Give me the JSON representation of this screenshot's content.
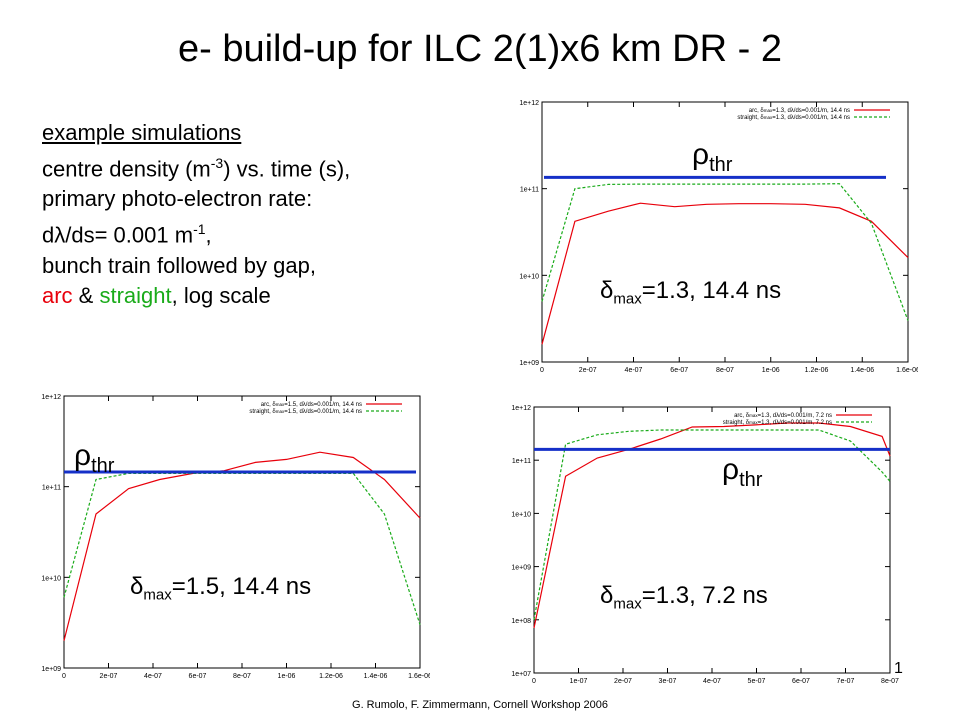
{
  "slide": {
    "title": "e- build-up for ILC 2(1)x6 km DR - 2",
    "desc": {
      "line1": "example simulations",
      "line2_pre": "centre density (m",
      "line2_sup": "-3",
      "line2_post": ") vs. time (s),",
      "line3": "primary photo-electron rate:",
      "line4_pre": "d",
      "line4_lambda": "λ",
      "line4_mid": "/ds= 0.001 m",
      "line4_sup": "-1",
      "line4_post": ",",
      "line5": "bunch train followed by gap,",
      "line6_arc": "arc",
      "line6_amp": " & ",
      "line6_straight": "straight",
      "line6_post": ", log scale"
    },
    "footer": "G. Rumolo, F. Zimmermann, Cornell Workshop 2006",
    "page_number": "1",
    "colors": {
      "arc": "#e8000b",
      "straight": "#1aab1a",
      "threshold": "#1530c8"
    }
  },
  "chart_data": [
    {
      "type": "line",
      "log_y": true,
      "xlim": [
        0,
        1.6e-06
      ],
      "ylim": [
        1000000000.0,
        1000000000000.0
      ],
      "x_ticks": [
        "0",
        "2e-07",
        "4e-07",
        "6e-07",
        "8e-07",
        "1e-06",
        "1.2e-06",
        "1.4e-06",
        "1.6e-06"
      ],
      "y_ticks": [
        "1e+09",
        "1e+10",
        "1e+11",
        "1e+12"
      ],
      "legend_position": "top-right",
      "legend": [
        {
          "prefix": "arc, δ",
          "sub": "max",
          "suffix": "=1.3, dλ/ds=0.001/m, 14.4 ns"
        },
        {
          "prefix": "straight, δ",
          "sub": "max",
          "suffix": "=1.3, dλ/ds=0.001/m, 14.4 ns"
        }
      ],
      "annotation": {
        "symbol": "δ",
        "sub": "max",
        "text": "=1.3, 14.4 ns"
      },
      "threshold_label": {
        "symbol": "ρ",
        "sub": "thr"
      },
      "threshold_value": 135000000000.0,
      "series": [
        {
          "name": "arc",
          "x": [
            0,
            1.44e-07,
            2.9e-07,
            4.3e-07,
            5.8e-07,
            7.2e-07,
            8.6e-07,
            1e-06,
            1.15e-06,
            1.3e-06,
            1.44e-06,
            1.6e-06
          ],
          "y": [
            1600000000.0,
            42000000000.0,
            55000000000.0,
            68000000000.0,
            62000000000.0,
            66000000000.0,
            67000000000.0,
            67000000000.0,
            66000000000.0,
            60000000000.0,
            42000000000.0,
            16000000000.0
          ]
        },
        {
          "name": "straight",
          "x": [
            0,
            1.44e-07,
            2.9e-07,
            4.3e-07,
            5.8e-07,
            7.2e-07,
            8.6e-07,
            1e-06,
            1.15e-06,
            1.3e-06,
            1.44e-06,
            1.6e-06
          ],
          "y": [
            5000000000.0,
            100000000000.0,
            112000000000.0,
            113000000000.0,
            113000000000.0,
            113000000000.0,
            113000000000.0,
            113000000000.0,
            113000000000.0,
            114000000000.0,
            40000000000.0,
            3000000000.0
          ]
        }
      ]
    },
    {
      "type": "line",
      "log_y": true,
      "xlim": [
        0,
        1.6e-06
      ],
      "ylim": [
        1000000000.0,
        1000000000000.0
      ],
      "x_ticks": [
        "0",
        "2e-07",
        "4e-07",
        "6e-07",
        "8e-07",
        "1e-06",
        "1.2e-06",
        "1.4e-06",
        "1.6e-06"
      ],
      "y_ticks": [
        "1e+09",
        "1e+10",
        "1e+11",
        "1e+12"
      ],
      "legend_position": "top-right",
      "legend": [
        {
          "prefix": "arc, δ",
          "sub": "max",
          "suffix": "=1.5, dλ/ds=0.001/m, 14.4 ns"
        },
        {
          "prefix": "straight, δ",
          "sub": "max",
          "suffix": "=1.5, dλ/ds=0.001/m, 14.4 ns"
        }
      ],
      "annotation": {
        "symbol": "δ",
        "sub": "max",
        "text": "=1.5, 14.4 ns"
      },
      "threshold_label": {
        "symbol": "ρ",
        "sub": "thr"
      },
      "threshold_value": 145000000000.0,
      "series": [
        {
          "name": "arc",
          "x": [
            0,
            1.44e-07,
            2.9e-07,
            4.3e-07,
            5.8e-07,
            7.2e-07,
            8.6e-07,
            1e-06,
            1.15e-06,
            1.3e-06,
            1.44e-06,
            1.6e-06
          ],
          "y": [
            2000000000.0,
            50000000000.0,
            95000000000.0,
            120000000000.0,
            140000000000.0,
            150000000000.0,
            185000000000.0,
            200000000000.0,
            240000000000.0,
            210000000000.0,
            120000000000.0,
            45000000000.0
          ]
        },
        {
          "name": "straight",
          "x": [
            0,
            1.44e-07,
            2.9e-07,
            4.3e-07,
            5.8e-07,
            7.2e-07,
            8.6e-07,
            1e-06,
            1.15e-06,
            1.3e-06,
            1.44e-06,
            1.6e-06
          ],
          "y": [
            6000000000.0,
            120000000000.0,
            140000000000.0,
            140000000000.0,
            140000000000.0,
            140000000000.0,
            140000000000.0,
            140000000000.0,
            140000000000.0,
            140000000000.0,
            50000000000.0,
            3000000000.0
          ]
        }
      ]
    },
    {
      "type": "line",
      "log_y": true,
      "xlim": [
        0,
        8.1e-07
      ],
      "ylim": [
        10000000.0,
        1000000000000.0
      ],
      "x_ticks": [
        "0",
        "1e-07",
        "2e-07",
        "3e-07",
        "4e-07",
        "5e-07",
        "6e-07",
        "7e-07",
        "8e-07"
      ],
      "y_ticks": [
        "1e+07",
        "1e+08",
        "1e+09",
        "1e+10",
        "1e+11",
        "1e+12"
      ],
      "legend_position": "top-right",
      "legend": [
        {
          "prefix": "arc, δ",
          "sub": "max",
          "suffix": "=1.3, dλ/ds=0.001/m, 7.2 ns"
        },
        {
          "prefix": "straight, δ",
          "sub": "max",
          "suffix": "=1.3, dλ/ds=0.001/m, 7.2 ns"
        }
      ],
      "annotation": {
        "symbol": "δ",
        "sub": "max",
        "text": "=1.3, 7.2 ns"
      },
      "threshold_label": {
        "symbol": "ρ",
        "sub": "thr"
      },
      "threshold_value": 160000000000.0,
      "series": [
        {
          "name": "arc",
          "x": [
            0,
            7.2e-08,
            1.44e-07,
            2.16e-07,
            2.88e-07,
            3.6e-07,
            4.32e-07,
            5.04e-07,
            5.76e-07,
            6.48e-07,
            7.2e-07,
            7.92e-07,
            8.1e-07
          ],
          "y": [
            70000000.0,
            50000000000.0,
            110000000000.0,
            160000000000.0,
            250000000000.0,
            420000000000.0,
            430000000000.0,
            460000000000.0,
            500000000000.0,
            500000000000.0,
            430000000000.0,
            280000000000.0,
            120000000000.0
          ]
        },
        {
          "name": "straight",
          "x": [
            0,
            7.2e-08,
            1.44e-07,
            2.16e-07,
            2.88e-07,
            3.6e-07,
            4.32e-07,
            5.04e-07,
            5.76e-07,
            6.48e-07,
            7.2e-07,
            7.92e-07,
            8.1e-07
          ],
          "y": [
            100000000.0,
            200000000000.0,
            300000000000.0,
            350000000000.0,
            370000000000.0,
            370000000000.0,
            370000000000.0,
            370000000000.0,
            370000000000.0,
            370000000000.0,
            230000000000.0,
            60000000000.0,
            40000000000.0
          ]
        }
      ]
    }
  ]
}
